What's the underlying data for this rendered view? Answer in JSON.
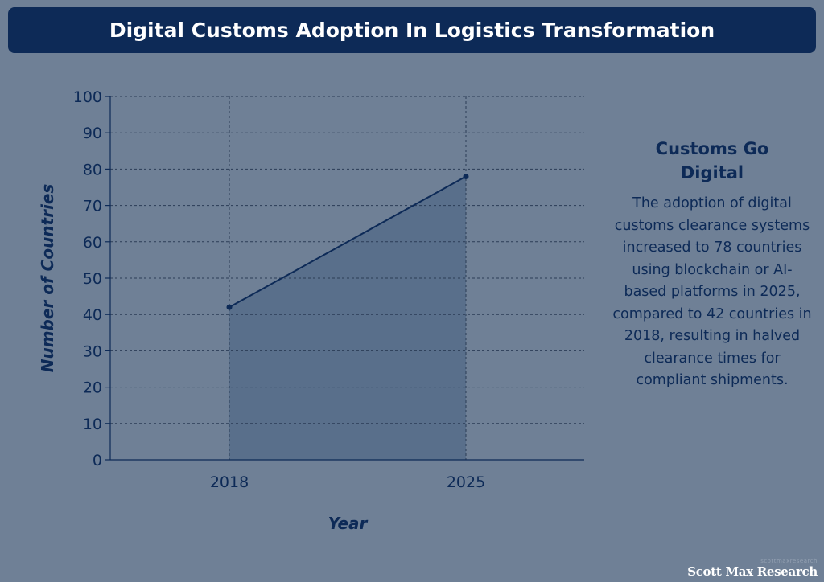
{
  "header": {
    "title": "Digital Customs Adoption In Logistics Transformation"
  },
  "chart_data": {
    "type": "area",
    "x": [
      "2018",
      "2025"
    ],
    "series": [
      {
        "values": [
          42,
          78
        ]
      }
    ],
    "xlabel": "Year",
    "ylabel": "Number of Countries",
    "ylim": [
      0,
      100
    ],
    "yticks": [
      "0",
      "10",
      "20",
      "30",
      "40",
      "50",
      "60",
      "70",
      "80",
      "90",
      "100"
    ],
    "grid": true,
    "colors": {
      "line": "#0d2a57",
      "fill": "#566c89",
      "grid": "#2b3c56"
    }
  },
  "sidebar": {
    "title": "Customs Go Digital",
    "body": "The adoption of digital customs clearance systems increased to 78 countries using blockchain or AI-based platforms in 2025, compared to 42 countries in 2018, resulting in halved clearance times for compliant shipments."
  },
  "brand": {
    "url": "scottmaxresearch",
    "name": "Scott Max Research"
  }
}
